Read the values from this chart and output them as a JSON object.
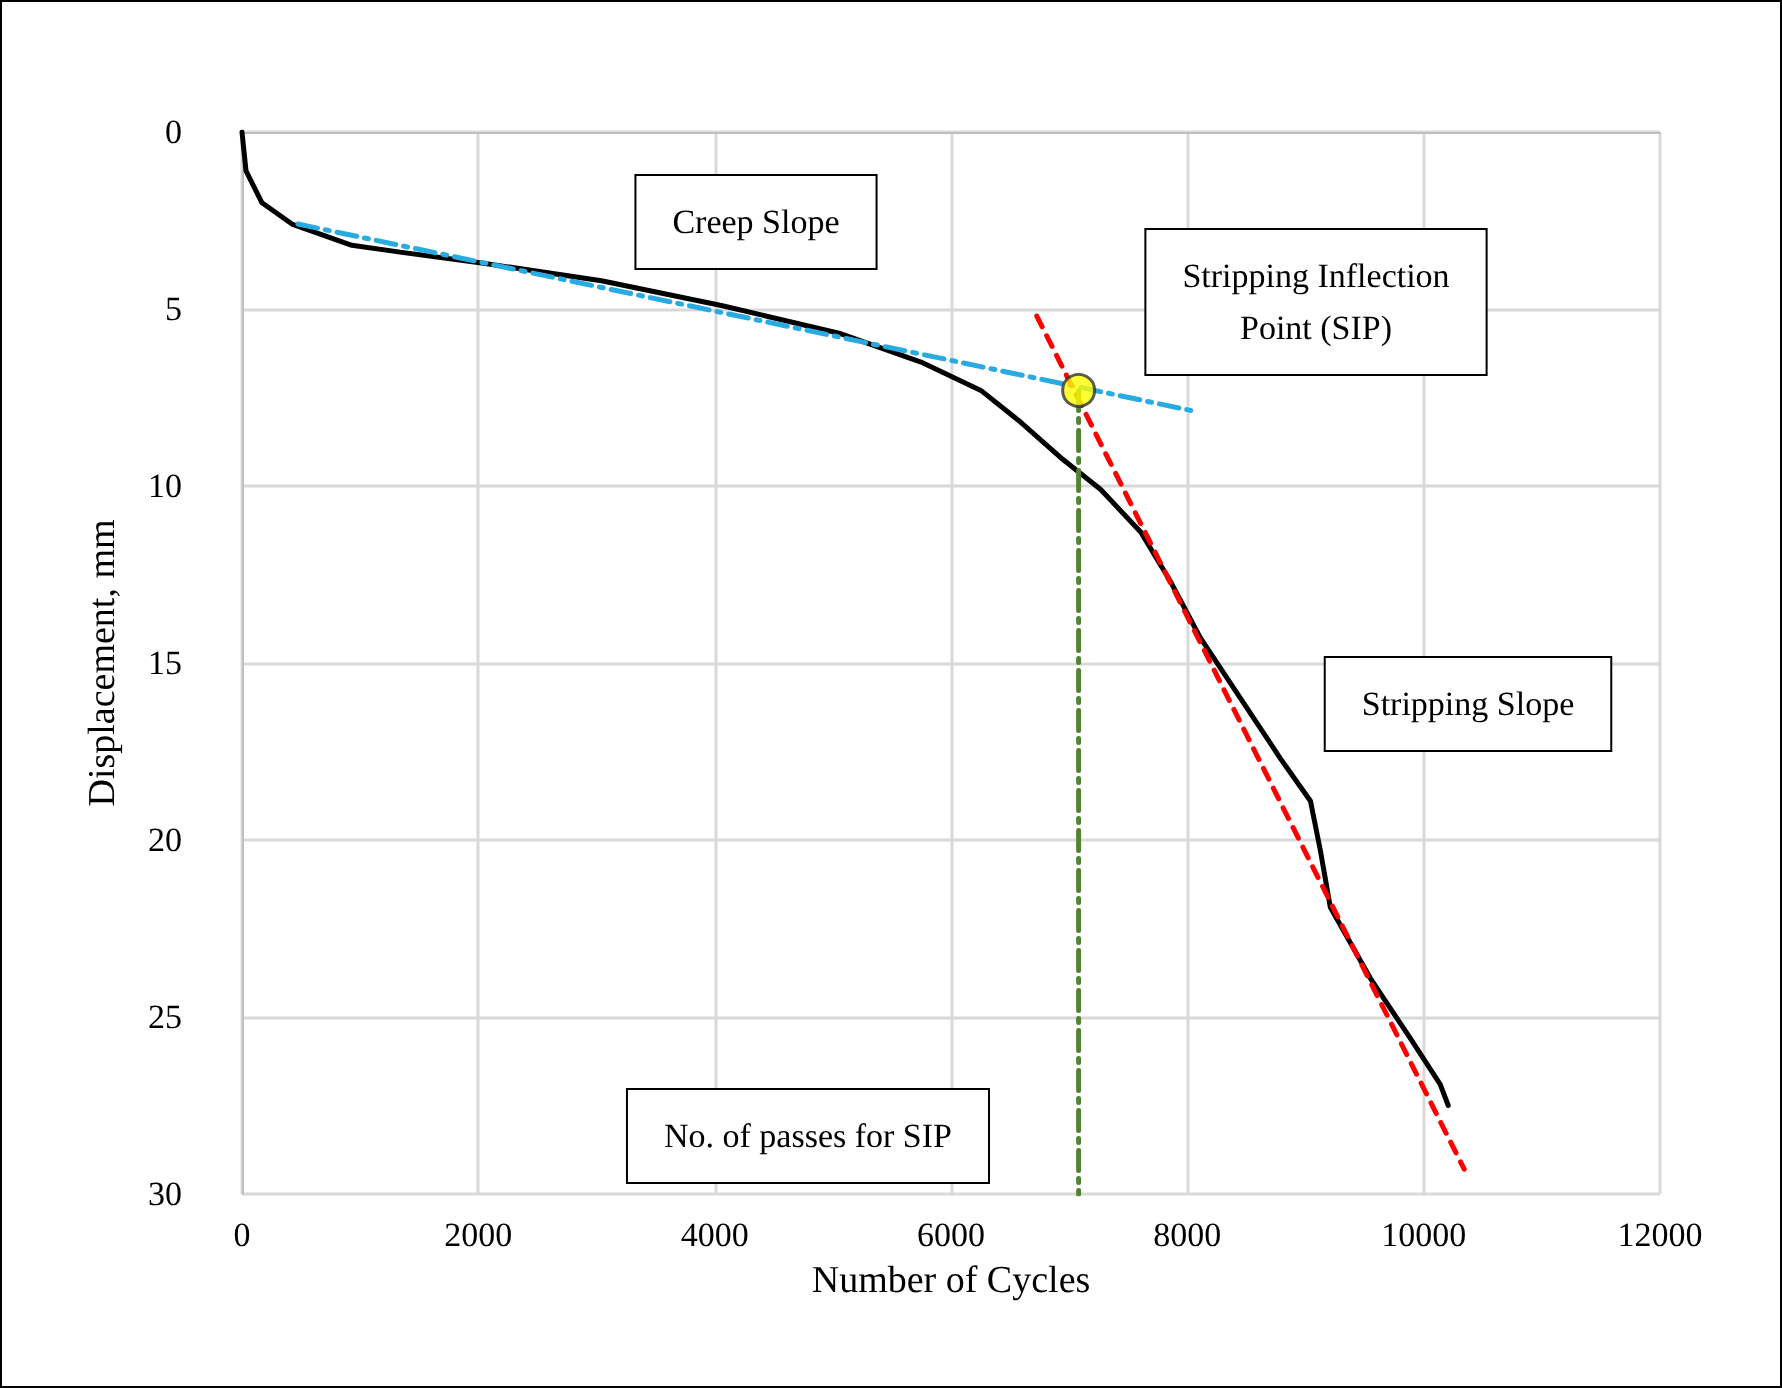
{
  "chart_data": {
    "type": "line",
    "xlabel": "Number of Cycles",
    "ylabel": "Displacement, mm",
    "xlim": [
      0,
      12000
    ],
    "xticks": [
      0,
      2000,
      4000,
      6000,
      8000,
      10000,
      12000
    ],
    "ylim": [
      30,
      0
    ],
    "yticks": [
      0,
      5,
      10,
      15,
      20,
      25,
      30
    ],
    "grid": true,
    "series": [
      {
        "color": "#000000",
        "line_style": "solid",
        "marker": "none",
        "x": [
          0,
          34,
          169,
          423,
          930,
          1352,
          2028,
          3042,
          4056,
          5070,
          5746,
          6253,
          6591,
          6929,
          7267,
          7605,
          7858,
          8112,
          8450,
          8788,
          9042,
          9126,
          9210,
          9548,
          9886,
          10140,
          10208
        ],
        "values": [
          0,
          1.1,
          2.0,
          2.6,
          3.2,
          3.4,
          3.7,
          4.2,
          4.9,
          5.7,
          6.5,
          7.3,
          8.2,
          9.2,
          10.1,
          11.3,
          12.7,
          14.3,
          16.0,
          17.7,
          18.9,
          20.3,
          21.9,
          23.9,
          25.6,
          26.9,
          27.5
        ]
      },
      {
        "color": "#29abe2",
        "line_style": "dashdot",
        "marker": "none",
        "x": [
          473,
          8078
        ],
        "values": [
          2.6,
          7.9
        ]
      },
      {
        "color": "#ff0000",
        "line_style": "dashed",
        "marker": "none",
        "x": [
          6726,
          10343
        ],
        "values": [
          5.2,
          29.3
        ]
      },
      {
        "color": "#548235",
        "line_style": "dashdot",
        "marker": "none",
        "x": [
          7080,
          7080
        ],
        "values": [
          7.3,
          30
        ]
      },
      {
        "type": "scatter",
        "color": "#ffff00",
        "marker": "circle",
        "x": [
          7080
        ],
        "values": [
          7.3
        ]
      }
    ],
    "annotations": [
      "Creep Slope",
      "Stripping Inflection\nPoint (SIP)",
      "Stripping Slope",
      "No. of passes for SIP"
    ]
  }
}
